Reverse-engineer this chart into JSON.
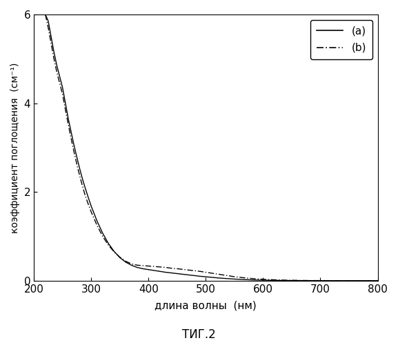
{
  "title": "ΤИГ.2",
  "xlabel": "длина волны  (нм)",
  "ylabel": "коэффициент поглощения  (см⁻¹)",
  "xlim": [
    200,
    800
  ],
  "ylim": [
    0,
    6
  ],
  "xticks": [
    200,
    300,
    400,
    500,
    600,
    700,
    800
  ],
  "yticks": [
    0,
    2,
    4,
    6
  ],
  "legend_a": "(a)",
  "legend_b": "(b)",
  "color": "#000000",
  "background": "#ffffff",
  "curve_a_x": [
    220,
    225,
    230,
    235,
    240,
    245,
    250,
    255,
    260,
    265,
    270,
    275,
    280,
    285,
    290,
    295,
    300,
    310,
    320,
    330,
    340,
    350,
    360,
    370,
    380,
    390,
    400,
    410,
    420,
    430,
    440,
    450,
    460,
    470,
    480,
    490,
    500,
    510,
    520,
    530,
    540,
    550,
    560,
    570,
    580,
    590,
    600,
    620,
    640,
    660,
    680,
    700,
    750,
    800
  ],
  "curve_a_y": [
    6.0,
    5.85,
    5.5,
    5.15,
    4.85,
    4.6,
    4.35,
    4.0,
    3.65,
    3.35,
    3.05,
    2.78,
    2.52,
    2.28,
    2.07,
    1.87,
    1.68,
    1.35,
    1.07,
    0.84,
    0.66,
    0.52,
    0.42,
    0.35,
    0.3,
    0.27,
    0.25,
    0.23,
    0.21,
    0.19,
    0.175,
    0.16,
    0.145,
    0.13,
    0.115,
    0.1,
    0.088,
    0.076,
    0.064,
    0.054,
    0.045,
    0.037,
    0.03,
    0.024,
    0.019,
    0.015,
    0.012,
    0.007,
    0.004,
    0.003,
    0.002,
    0.001,
    0.001,
    0.001
  ],
  "curve_b_x": [
    220,
    225,
    230,
    235,
    240,
    245,
    250,
    255,
    260,
    265,
    270,
    275,
    280,
    285,
    290,
    295,
    300,
    310,
    320,
    330,
    340,
    350,
    360,
    370,
    380,
    390,
    400,
    410,
    420,
    430,
    440,
    450,
    460,
    470,
    480,
    490,
    500,
    510,
    520,
    530,
    540,
    550,
    560,
    570,
    580,
    590,
    600,
    620,
    640,
    660,
    680,
    700,
    750,
    800
  ],
  "curve_b_y": [
    6.0,
    5.7,
    5.35,
    5.0,
    4.7,
    4.45,
    4.2,
    3.85,
    3.52,
    3.2,
    2.9,
    2.62,
    2.36,
    2.12,
    1.9,
    1.72,
    1.55,
    1.25,
    1.0,
    0.8,
    0.65,
    0.53,
    0.44,
    0.38,
    0.35,
    0.34,
    0.33,
    0.32,
    0.31,
    0.3,
    0.28,
    0.27,
    0.255,
    0.24,
    0.225,
    0.21,
    0.19,
    0.17,
    0.15,
    0.13,
    0.11,
    0.09,
    0.075,
    0.062,
    0.05,
    0.04,
    0.032,
    0.02,
    0.012,
    0.007,
    0.004,
    0.003,
    0.001,
    0.001
  ]
}
